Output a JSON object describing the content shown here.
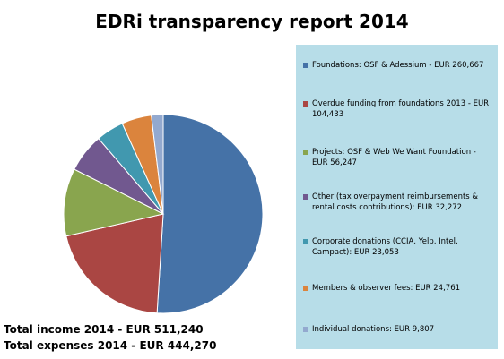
{
  "title": "EDRi transparency report 2014",
  "chart_data": {
    "type": "pie",
    "title": "EDRi transparency report 2014",
    "legend_position": "right",
    "slices": [
      {
        "label": "Foundations: OSF & Adessium - EUR 260,667",
        "value": 260667,
        "color": "#4572a7"
      },
      {
        "label": "Overdue funding from foundations 2013 - EUR 104,433",
        "value": 104433,
        "color": "#aa4643"
      },
      {
        "label": "Projects: OSF & Web We Want Foundation - EUR 56,247",
        "value": 56247,
        "color": "#89a54e"
      },
      {
        "label": "Other (tax overpayment reimbursements & rental costs contributions): EUR 32,272",
        "value": 32272,
        "color": "#71588f"
      },
      {
        "label": "Corporate donations (CCIA, Yelp, Intel, Campact): EUR 23,053",
        "value": 23053,
        "color": "#4198af"
      },
      {
        "label": "Members & observer fees: EUR 24,761",
        "value": 24761,
        "color": "#db843d"
      },
      {
        "label": "Individual donations: EUR 9,807",
        "value": 9807,
        "color": "#93a9cf"
      }
    ]
  },
  "totals": {
    "income": "Total income 2014 - EUR 511,240",
    "expenses": "Total expenses 2014 - EUR 444,270"
  }
}
